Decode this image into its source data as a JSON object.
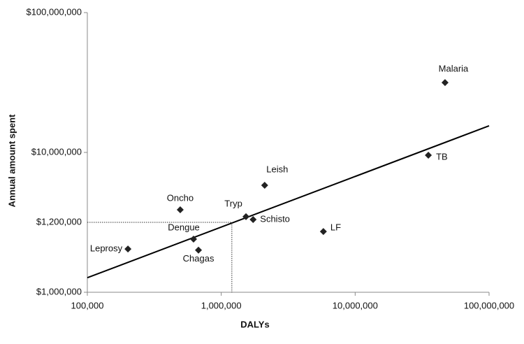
{
  "chart_data": {
    "type": "scatter",
    "xlabel": "DALYs",
    "ylabel": "Annual amount spent",
    "log_x": true,
    "log_y": true,
    "color": "#222222",
    "labels": [
      "Leprosy",
      "Oncho",
      "Dengue",
      "Chagas",
      "Tryp",
      "Schisto",
      "Leish",
      "LF",
      "TB",
      "Malaria"
    ],
    "x": [
      201000,
      494000,
      621000,
      676000,
      1530000,
      1730000,
      2110000,
      5790000,
      35200000,
      46900000
    ],
    "y": [
      2040000,
      3890000,
      2400000,
      2000000,
      3470000,
      3310000,
      5820000,
      2720000,
      9550000,
      31600000
    ],
    "trendline": {
      "x": [
        100000,
        100000000
      ],
      "y": [
        1270000,
        15500000
      ]
    },
    "reference": {
      "label": "$1,200,000",
      "x": 1200000,
      "y": 3162278
    },
    "xlim": [
      100000,
      100000000
    ],
    "ylim": [
      1000000,
      100000000
    ],
    "xticks": [
      {
        "value": 100000,
        "label": "100,000"
      },
      {
        "value": 1000000,
        "label": "1,000,000"
      },
      {
        "value": 10000000,
        "label": "10,000,000"
      },
      {
        "value": 100000000,
        "label": "100,000,000"
      }
    ],
    "yticks": [
      {
        "value": 1000000,
        "label": "$1,000,000"
      },
      {
        "value": 10000000,
        "label": "$10,000,000"
      },
      {
        "value": 100000000,
        "label": "$100,000,000"
      }
    ]
  }
}
